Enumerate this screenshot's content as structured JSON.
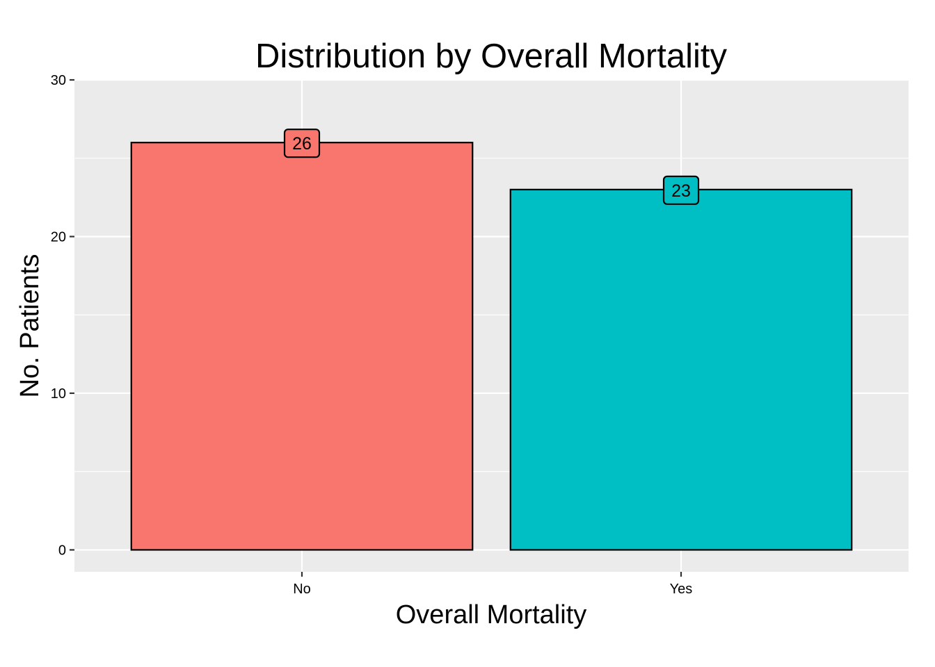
{
  "chart_data": {
    "type": "bar",
    "title": "Distribution by Overall Mortality",
    "xlabel": "Overall Mortality",
    "ylabel": "No. Patients",
    "categories": [
      "No",
      "Yes"
    ],
    "values": [
      26,
      23
    ],
    "data_labels": [
      "26",
      "23"
    ],
    "colors": [
      "#F8766D",
      "#00BFC4"
    ],
    "ylim": [
      -1.4,
      30
    ],
    "yticks": [
      0,
      10,
      20,
      30
    ],
    "ytick_labels": [
      "0",
      "10",
      "20",
      "30"
    ],
    "grid": true,
    "legend": "none",
    "panel_background": "#EBEBEB",
    "grid_color": "#FFFFFF",
    "bar_outline_color": "#000000"
  }
}
